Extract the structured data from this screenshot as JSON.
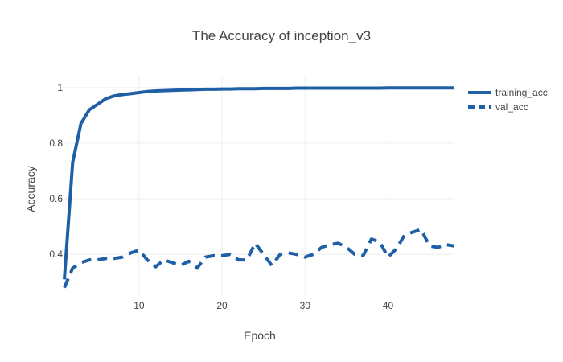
{
  "chart_data": {
    "type": "line",
    "title": "The Accuracy of inception_v3",
    "xlabel": "Epoch",
    "ylabel": "Accuracy",
    "xlim": [
      1,
      48
    ],
    "ylim": [
      0.25,
      1.04
    ],
    "x_ticks": [
      10,
      20,
      30,
      40
    ],
    "y_ticks": [
      0.4,
      0.6,
      0.8,
      1
    ],
    "y_tick_labels": [
      "0.4",
      "0.6",
      "0.8",
      "1"
    ],
    "grid": true,
    "legend_position": "top-right",
    "series": [
      {
        "name": "training_acc",
        "dash": "solid",
        "color": "#1f5fa6",
        "x": [
          1,
          2,
          3,
          4,
          5,
          6,
          7,
          8,
          9,
          10,
          11,
          12,
          13,
          14,
          15,
          16,
          17,
          18,
          19,
          20,
          21,
          22,
          23,
          24,
          25,
          26,
          27,
          28,
          29,
          30,
          31,
          32,
          33,
          34,
          35,
          36,
          37,
          38,
          39,
          40,
          41,
          42,
          43,
          44,
          45,
          46,
          47,
          48
        ],
        "y": [
          0.31,
          0.73,
          0.87,
          0.92,
          0.94,
          0.96,
          0.97,
          0.975,
          0.978,
          0.982,
          0.986,
          0.988,
          0.989,
          0.99,
          0.991,
          0.992,
          0.993,
          0.994,
          0.994,
          0.995,
          0.995,
          0.996,
          0.996,
          0.996,
          0.997,
          0.997,
          0.997,
          0.997,
          0.998,
          0.998,
          0.998,
          0.998,
          0.998,
          0.998,
          0.998,
          0.998,
          0.998,
          0.998,
          0.998,
          0.999,
          0.999,
          0.999,
          0.999,
          0.999,
          0.999,
          0.999,
          0.999,
          0.999
        ]
      },
      {
        "name": "val_acc",
        "dash": "dash",
        "color": "#1f5fa6",
        "x": [
          1,
          2,
          3,
          4,
          5,
          6,
          7,
          8,
          9,
          10,
          11,
          12,
          13,
          14,
          15,
          16,
          17,
          18,
          19,
          20,
          21,
          22,
          23,
          24,
          25,
          26,
          27,
          28,
          29,
          30,
          31,
          32,
          33,
          34,
          35,
          36,
          37,
          38,
          39,
          40,
          41,
          42,
          43,
          44,
          45,
          46,
          47,
          48
        ],
        "y": [
          0.28,
          0.35,
          0.37,
          0.38,
          0.38,
          0.385,
          0.385,
          0.39,
          0.405,
          0.415,
          0.38,
          0.355,
          0.38,
          0.37,
          0.36,
          0.375,
          0.35,
          0.39,
          0.395,
          0.395,
          0.4,
          0.38,
          0.38,
          0.44,
          0.4,
          0.36,
          0.4,
          0.405,
          0.4,
          0.39,
          0.4,
          0.425,
          0.435,
          0.44,
          0.425,
          0.4,
          0.395,
          0.455,
          0.445,
          0.39,
          0.42,
          0.47,
          0.48,
          0.49,
          0.43,
          0.425,
          0.435,
          0.43
        ]
      }
    ]
  }
}
